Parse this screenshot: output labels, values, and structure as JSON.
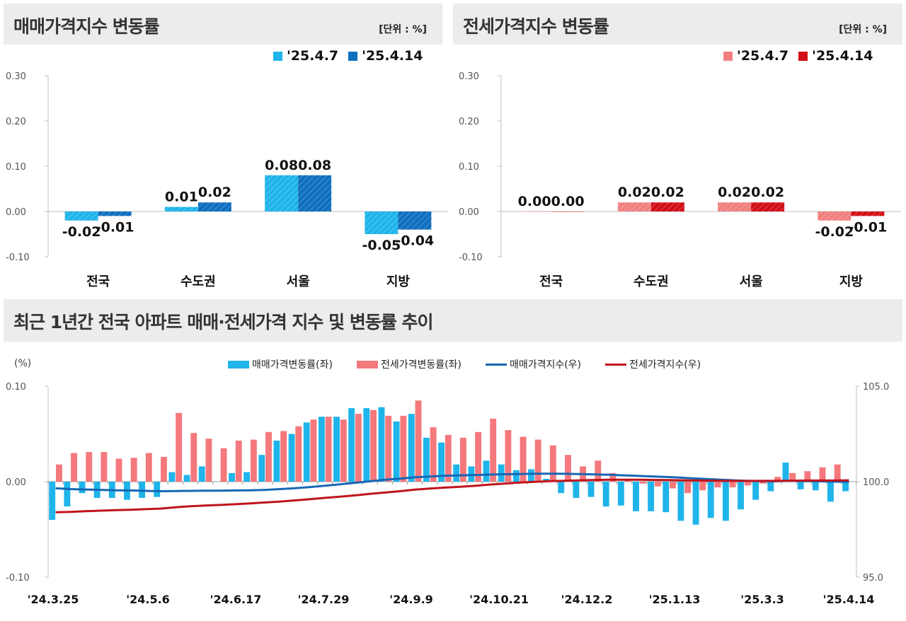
{
  "panels": {
    "sale": {
      "title": "매매가격지수  변동률",
      "unit": "[단위 : %]",
      "legend": [
        "'25.4.7",
        "'25.4.14"
      ],
      "colors": [
        "#1fb4ea",
        "#0f6fbf"
      ]
    },
    "jeonse": {
      "title": "전세가격지수  변동률",
      "unit": "[단위 : %]",
      "legend": [
        "'25.4.7",
        "'25.4.14"
      ],
      "colors": [
        "#f08080",
        "#d10f17"
      ]
    },
    "trend": {
      "title": "최근 1년간 전국 아파트 매매·전세가격 지수 및 변동률 추이",
      "y_left_label": "(%)",
      "legend": [
        "매매가격변동률(좌)",
        "전세가격변동률(좌)",
        "매매가격지수(우)",
        "전세가격지수(우)"
      ],
      "colors": [
        "#1fb4ea",
        "#f4787c",
        "#1767b5",
        "#c0141b"
      ]
    }
  },
  "chart_data": [
    {
      "type": "bar",
      "categories": [
        "전국",
        "수도권",
        "서울",
        "지방"
      ],
      "series": [
        {
          "name": "'25.4.7",
          "values": [
            -0.02,
            0.01,
            0.08,
            -0.05
          ]
        },
        {
          "name": "'25.4.14",
          "values": [
            -0.01,
            0.02,
            0.08,
            -0.04
          ]
        }
      ],
      "data_labels": [
        [
          "-0.02",
          "0.01",
          "0.08",
          "-0.05"
        ],
        [
          "-0.01",
          "0.02",
          "0.08",
          "-0.04"
        ]
      ],
      "yticks": [
        "0.30",
        "0.20",
        "0.10",
        "0.00",
        "-0.10"
      ],
      "ylim": [
        -0.1,
        0.3
      ]
    },
    {
      "type": "bar",
      "categories": [
        "전국",
        "수도권",
        "서울",
        "지방"
      ],
      "series": [
        {
          "name": "'25.4.7",
          "values": [
            0.0,
            0.02,
            0.02,
            -0.02
          ]
        },
        {
          "name": "'25.4.14",
          "values": [
            0.0,
            0.02,
            0.02,
            -0.01
          ]
        }
      ],
      "data_labels": [
        [
          "0.00",
          "0.02",
          "0.02",
          "-0.02"
        ],
        [
          "0.00",
          "0.02",
          "0.02",
          "-0.01"
        ]
      ],
      "yticks": [
        "0.30",
        "0.20",
        "0.10",
        "0.00",
        "-0.10"
      ],
      "ylim": [
        -0.1,
        0.3
      ]
    },
    {
      "type": "bar",
      "x_tick_labels": [
        "'24.3.25",
        "'24.5.6",
        "'24.6.17",
        "'24.7.29",
        "'24.9.9",
        "'24.10.21",
        "'24.12.2",
        "'25.1.13",
        "'25.3.3",
        "'25.4.14"
      ],
      "yticks_left": [
        "0.10",
        "0.00",
        "-0.10"
      ],
      "yticks_right": [
        "105.0",
        "100.0",
        "95.0"
      ],
      "ylim_left": [
        -0.1,
        0.1
      ],
      "ylim_right": [
        95,
        105
      ],
      "series": [
        {
          "name": "매매가격변동률(좌)",
          "type": "bar",
          "values": [
            -0.04,
            -0.026,
            -0.012,
            -0.017,
            -0.017,
            -0.019,
            -0.017,
            -0.016,
            0.01,
            0.007,
            0.016,
            0.0,
            0.009,
            0.01,
            0.028,
            0.043,
            0.05,
            0.062,
            0.068,
            0.068,
            0.077,
            0.077,
            0.078,
            0.063,
            0.071,
            0.046,
            0.041,
            0.018,
            0.016,
            0.022,
            0.018,
            0.012,
            0.013,
            0.003,
            -0.012,
            -0.017,
            -0.016,
            -0.026,
            -0.025,
            -0.031,
            -0.031,
            -0.032,
            -0.041,
            -0.045,
            -0.038,
            -0.041,
            -0.029,
            -0.019,
            -0.01,
            0.02,
            -0.008,
            -0.009,
            -0.021,
            -0.01
          ]
        },
        {
          "name": "전세가격변동률(좌)",
          "type": "bar",
          "values": [
            0.018,
            0.03,
            0.031,
            0.031,
            0.024,
            0.025,
            0.03,
            0.026,
            0.072,
            0.051,
            0.045,
            0.035,
            0.043,
            0.044,
            0.052,
            0.053,
            0.058,
            0.065,
            0.068,
            0.065,
            0.071,
            0.075,
            0.069,
            0.069,
            0.085,
            0.057,
            0.049,
            0.046,
            0.052,
            0.066,
            0.054,
            0.047,
            0.044,
            0.038,
            0.028,
            0.016,
            0.022,
            0.009,
            0.003,
            -0.002,
            -0.005,
            -0.007,
            -0.012,
            -0.009,
            -0.006,
            -0.006,
            -0.004,
            -0.002,
            0.005,
            0.009,
            0.011,
            0.015,
            0.018,
            0.0
          ]
        },
        {
          "name": "매매가격지수(우)",
          "type": "line",
          "values": [
            99.65,
            99.61,
            99.59,
            99.57,
            99.55,
            99.54,
            99.52,
            99.5,
            99.51,
            99.52,
            99.53,
            99.53,
            99.54,
            99.55,
            99.57,
            99.61,
            99.66,
            99.72,
            99.79,
            99.86,
            99.94,
            100.02,
            100.1,
            100.16,
            100.23,
            100.27,
            100.31,
            100.33,
            100.35,
            100.37,
            100.39,
            100.4,
            100.42,
            100.42,
            100.41,
            100.4,
            100.38,
            100.36,
            100.33,
            100.3,
            100.27,
            100.24,
            100.2,
            100.16,
            100.12,
            100.08,
            100.05,
            100.03,
            100.02,
            100.04,
            100.03,
            100.02,
            100.0,
            99.99
          ]
        },
        {
          "name": "전세가격지수(우)",
          "type": "line",
          "values": [
            98.4,
            98.42,
            98.45,
            98.48,
            98.51,
            98.53,
            98.56,
            98.59,
            98.66,
            98.71,
            98.75,
            98.78,
            98.82,
            98.86,
            98.91,
            98.96,
            99.02,
            99.08,
            99.15,
            99.21,
            99.28,
            99.36,
            99.43,
            99.5,
            99.58,
            99.64,
            99.69,
            99.73,
            99.78,
            99.85,
            99.9,
            99.95,
            99.99,
            100.03,
            100.05,
            100.07,
            100.09,
            100.1,
            100.1,
            100.1,
            100.09,
            100.08,
            100.07,
            100.06,
            100.05,
            100.04,
            100.04,
            100.04,
            100.04,
            100.05,
            100.06,
            100.06,
            100.06,
            100.07
          ]
        }
      ]
    }
  ]
}
